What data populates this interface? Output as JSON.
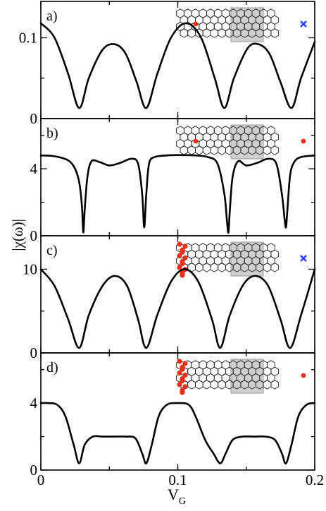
{
  "colors": {
    "curve": "#000000",
    "red_site": "#e8311c",
    "blue_site": "#2a3cff",
    "gate_region": "#cfcfcf",
    "lattice": "#222222"
  },
  "axes": {
    "ylabel": "|χ(ω)|",
    "xlabel_main": "V",
    "xlabel_sub": "G"
  },
  "chart_data": [
    {
      "type": "line",
      "panel": "a)",
      "xlim": [
        0,
        0.2
      ],
      "ylim": [
        0,
        0.145
      ],
      "x_ticks": [
        "0",
        "0.1",
        "0.2"
      ],
      "y_ticks": [
        {
          "value": 0,
          "label": "0"
        },
        {
          "value": 0.1,
          "label": "0.1"
        }
      ],
      "inset": {
        "source": "single-red",
        "probe": "blue-cross"
      },
      "x": [
        0,
        0.01,
        0.02,
        0.028,
        0.035,
        0.045,
        0.054,
        0.062,
        0.07,
        0.077,
        0.085,
        0.095,
        0.106,
        0.117,
        0.127,
        0.134,
        0.141,
        0.151,
        0.159,
        0.167,
        0.175,
        0.183,
        0.19,
        0.2
      ],
      "y": [
        0.118,
        0.1,
        0.055,
        0.013,
        0.05,
        0.085,
        0.092,
        0.08,
        0.045,
        0.013,
        0.055,
        0.1,
        0.118,
        0.1,
        0.05,
        0.013,
        0.05,
        0.087,
        0.092,
        0.08,
        0.045,
        0.013,
        0.05,
        0.095
      ]
    },
    {
      "type": "line",
      "panel": "b)",
      "xlim": [
        0,
        0.2
      ],
      "ylim": [
        0,
        7.0
      ],
      "x_ticks": [
        "0",
        "0.1",
        "0.2"
      ],
      "y_ticks": [
        {
          "value": 0,
          "label": "0"
        },
        {
          "value": 4,
          "label": "4"
        }
      ],
      "inset": {
        "source": "single-red",
        "probe": "red-dot"
      },
      "x": [
        0,
        0.01,
        0.02,
        0.025,
        0.028,
        0.03,
        0.031,
        0.032,
        0.034,
        0.037,
        0.043,
        0.05,
        0.058,
        0.066,
        0.071,
        0.074,
        0.0755,
        0.077,
        0.079,
        0.083,
        0.092,
        0.102,
        0.113,
        0.122,
        0.129,
        0.134,
        0.136,
        0.137,
        0.138,
        0.14,
        0.144,
        0.15,
        0.158,
        0.166,
        0.172,
        0.176,
        0.178,
        0.179,
        0.18,
        0.182,
        0.185,
        0.19,
        0.2
      ],
      "y": [
        4.8,
        4.75,
        4.5,
        4.0,
        3.2,
        1.8,
        0.2,
        1.5,
        3.5,
        4.45,
        4.4,
        4.2,
        4.35,
        4.6,
        4.3,
        2.5,
        0.5,
        2.5,
        4.3,
        4.7,
        4.8,
        4.82,
        4.8,
        4.7,
        4.3,
        2.5,
        0.8,
        0.2,
        1.5,
        3.5,
        4.45,
        4.2,
        4.35,
        4.6,
        4.3,
        2.5,
        1.0,
        0.5,
        1.5,
        3.6,
        4.4,
        4.7,
        4.8
      ]
    },
    {
      "type": "line",
      "panel": "c)",
      "xlim": [
        0,
        0.2
      ],
      "ylim": [
        0,
        14.0
      ],
      "x_ticks": [
        "0",
        "0.1",
        "0.2"
      ],
      "y_ticks": [
        {
          "value": 0,
          "label": "0"
        },
        {
          "value": 10,
          "label": "10"
        }
      ],
      "inset": {
        "source": "red-edge",
        "probe": "blue-cross"
      },
      "x": [
        0,
        0.01,
        0.02,
        0.028,
        0.035,
        0.045,
        0.054,
        0.063,
        0.071,
        0.077,
        0.085,
        0.095,
        0.105,
        0.115,
        0.125,
        0.131,
        0.138,
        0.148,
        0.157,
        0.166,
        0.175,
        0.182,
        0.19,
        0.2
      ],
      "y": [
        10.0,
        8.0,
        4.0,
        0.6,
        4.5,
        8.0,
        9.2,
        8.0,
        4.0,
        0.6,
        4.5,
        8.5,
        10.0,
        8.5,
        4.0,
        0.6,
        4.5,
        8.2,
        9.2,
        8.0,
        4.0,
        0.6,
        4.5,
        10.0
      ]
    },
    {
      "type": "line",
      "panel": "d)",
      "xlim": [
        0,
        0.2
      ],
      "ylim": [
        0,
        7.0
      ],
      "x_ticks": [
        "0",
        "0.1",
        "0.2"
      ],
      "y_ticks": [
        {
          "value": 0,
          "label": "0"
        },
        {
          "value": 4,
          "label": "4"
        }
      ],
      "inset": {
        "source": "red-edge",
        "probe": "red-dot"
      },
      "x": [
        0,
        0.005,
        0.012,
        0.018,
        0.024,
        0.028,
        0.032,
        0.038,
        0.045,
        0.054,
        0.062,
        0.069,
        0.074,
        0.077,
        0.081,
        0.086,
        0.092,
        0.1,
        0.108,
        0.113,
        0.12,
        0.126,
        0.131,
        0.135,
        0.14,
        0.147,
        0.156,
        0.164,
        0.171,
        0.176,
        0.179,
        0.183,
        0.188,
        0.194,
        0.2
      ],
      "y": [
        4.0,
        4.0,
        3.9,
        3.2,
        1.5,
        0.4,
        1.5,
        2.0,
        2.0,
        2.0,
        2.0,
        1.9,
        1.0,
        0.4,
        1.5,
        3.2,
        3.9,
        4.0,
        3.9,
        3.2,
        1.8,
        1.0,
        0.4,
        1.0,
        1.8,
        2.0,
        2.0,
        2.0,
        1.8,
        1.0,
        0.4,
        1.5,
        3.2,
        3.9,
        4.0
      ]
    }
  ]
}
